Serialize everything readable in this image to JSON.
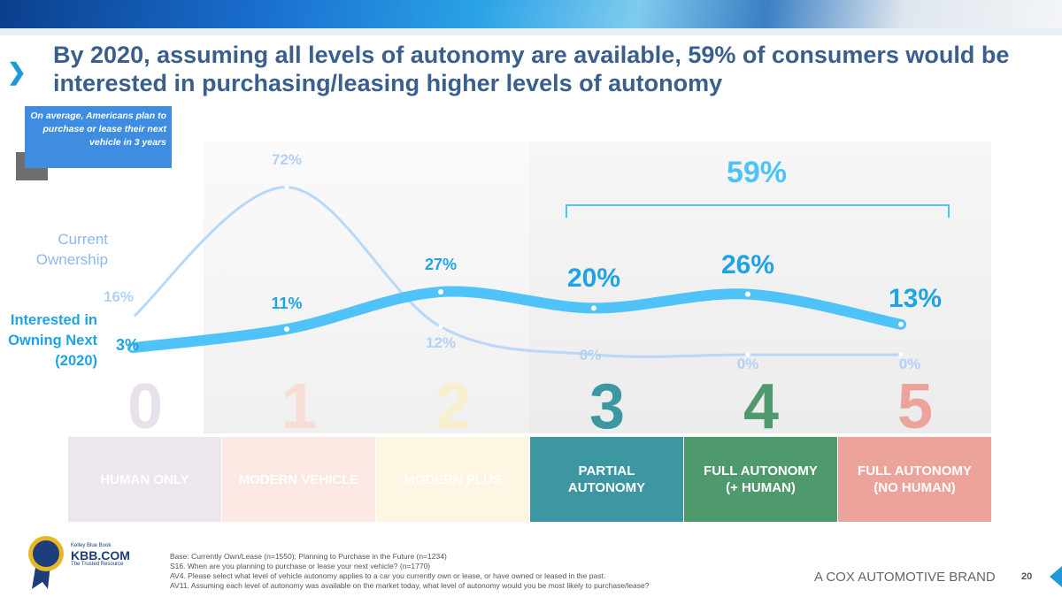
{
  "title": "By 2020, assuming all levels of autonomy are available, 59% of consumers would be interested in purchasing/leasing higher levels of autonomy",
  "note": "On average, Americans plan to purchase or lease their next vehicle in 3 years",
  "bracket_label": "59%",
  "colors": {
    "current": "#a9cdf5",
    "interested": "#4fc3f7",
    "title": "#3a5f8c"
  },
  "chart_data": {
    "type": "line",
    "categories": [
      "0",
      "1",
      "2",
      "3",
      "4",
      "5"
    ],
    "category_names": [
      "HUMAN ONLY",
      "MODERN VEHICLE",
      "MODERN PLUS",
      "PARTIAL AUTONOMY",
      "FULL AUTONOMY (+ HUMAN)",
      "FULL AUTONOMY (NO HUMAN)"
    ],
    "series": [
      {
        "name": "Current Ownership",
        "values": [
          16,
          72,
          12,
          0,
          0,
          0
        ],
        "labels": [
          "16%",
          "72%",
          "12%",
          "0%",
          "0%",
          "0%"
        ]
      },
      {
        "name": "Interested in Owning Next (2020)",
        "values": [
          3,
          11,
          27,
          20,
          26,
          13
        ],
        "labels": [
          "3%",
          "11%",
          "27%",
          "20%",
          "26%",
          "13%"
        ]
      }
    ],
    "ylim": [
      0,
      80
    ],
    "annotation": "59%"
  },
  "series_labels": {
    "current": "Current Ownership",
    "interested": "Interested in Owning Next (2020)"
  },
  "levels": [
    {
      "num": "0",
      "name": "HUMAN ONLY",
      "color": "#ece6ee",
      "numcolor": "#e8e0ea"
    },
    {
      "num": "1",
      "name": "MODERN VEHICLE",
      "color": "#fbe8e3",
      "numcolor": "#f8ddd5"
    },
    {
      "num": "2",
      "name": "MODERN PLUS",
      "color": "#fcf6e2",
      "numcolor": "#f8efcf"
    },
    {
      "num": "3",
      "name": "PARTIAL AUTONOMY",
      "color": "#3c97a2",
      "numcolor": "#3c97a2"
    },
    {
      "num": "4",
      "name": "FULL AUTONOMY (+ HUMAN)",
      "color": "#4f9a6c",
      "numcolor": "#4f9a6c"
    },
    {
      "num": "5",
      "name": "FULL AUTONOMY (NO HUMAN)",
      "color": "#eca39b",
      "numcolor": "#eca39b"
    }
  ],
  "logo": {
    "line1": "Kelley Blue Book",
    "line2": "KBB.COM",
    "line3": "The Trusted Resource"
  },
  "footnotes": [
    "Base: Currently Own/Lease (n=1550); Planning to Purchase in the Future (n=1234)",
    "S16. When are you planning to purchase or lease your next vehicle? (n=1770)",
    "AV4. Please select what level of vehicle autonomy applies to a car you currently own or lease, or have owned or leased in the past.",
    "AV11. Assuming each level of autonomy was available on the market today, what level of autonomy would you be most likely to purchase/lease?"
  ],
  "brand": "A COX AUTOMOTIVE BRAND",
  "page_number": "20"
}
